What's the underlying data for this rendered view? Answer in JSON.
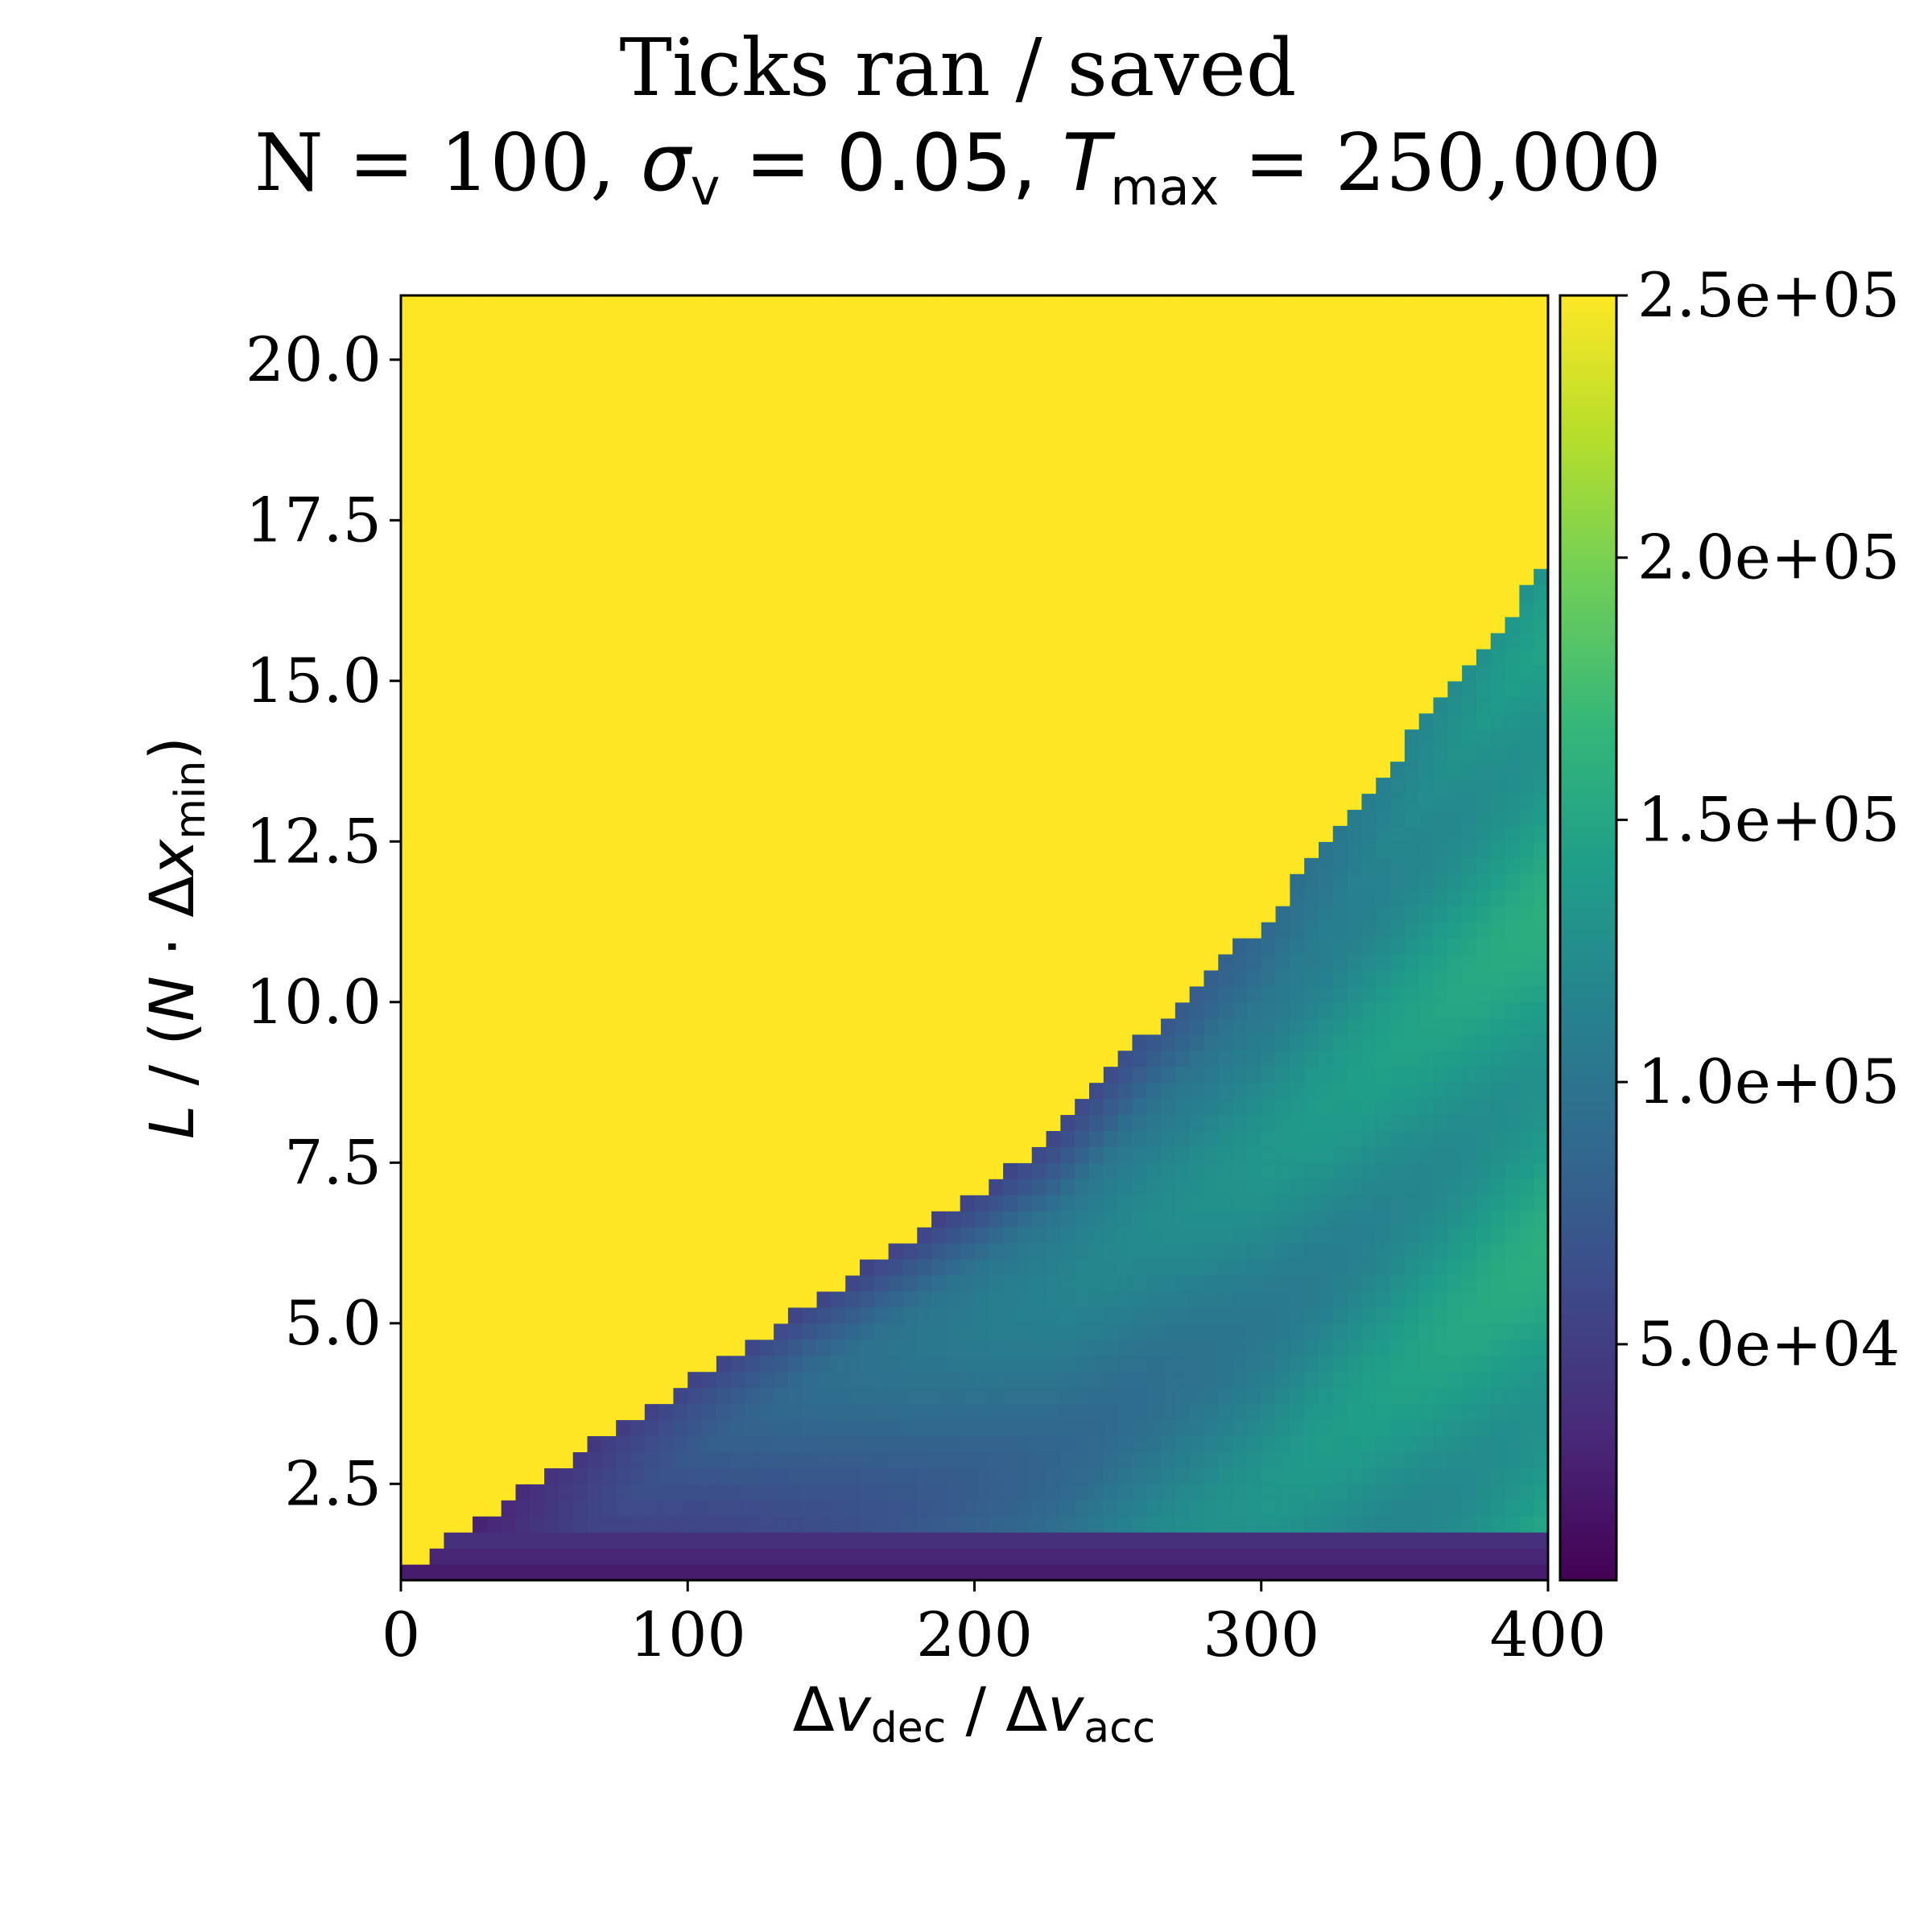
{
  "chart_data": {
    "type": "heatmap",
    "title": "Ticks ran / saved",
    "subtitle": {
      "prefix": "N = 100, ",
      "sigma_symbol": "σ",
      "sigma_sub": "v",
      "sigma_value": " = 0.05, ",
      "t_symbol": "T",
      "t_sub": "max",
      "t_value": " = 250,000"
    },
    "xlabel": {
      "delta1": "Δ",
      "v1": "v",
      "sub1": "dec",
      "middle": " / ",
      "delta2": "Δ",
      "v2": "v",
      "sub2": "acc"
    },
    "ylabel": {
      "l": "L",
      "middle": " / (",
      "n": "N",
      "dot": " · ",
      "delta": "Δ",
      "x": "x",
      "sub": "min",
      "close": ")"
    },
    "xlim": [
      0,
      400
    ],
    "ylim": [
      1.0,
      21.0
    ],
    "x_ticks": [
      0,
      100,
      200,
      300,
      400
    ],
    "y_ticks": [
      2.5,
      5.0,
      7.5,
      10.0,
      12.5,
      15.0,
      17.5,
      20.0
    ],
    "x_tick_labels": [
      "0",
      "100",
      "200",
      "300",
      "400"
    ],
    "y_tick_labels": [
      "2.5",
      "5.0",
      "7.5",
      "10.0",
      "12.5",
      "15.0",
      "17.5",
      "20.0"
    ],
    "colormap": "viridis",
    "colorbar": {
      "min": 5000,
      "max": 250000,
      "ticks": [
        50000,
        100000,
        150000,
        200000,
        250000
      ],
      "tick_labels": [
        "5.0e+04",
        "1.0e+05",
        "1.5e+05",
        "2.0e+05",
        "2.5e+05"
      ]
    },
    "saturated_value": 250000,
    "saturation_boundary": {
      "x": [
        0,
        50,
        100,
        150,
        200,
        230,
        260,
        300,
        350,
        400
      ],
      "y": [
        1.1,
        2.6,
        4.1,
        5.5,
        7.0,
        8.0,
        9.5,
        11.2,
        14.0,
        16.8
      ]
    },
    "bottom_row_value": 20000,
    "grid": false
  },
  "colors": {
    "viridis": [
      "#440154",
      "#482878",
      "#3e4989",
      "#31688e",
      "#26828e",
      "#1f9e89",
      "#35b779",
      "#6ece58",
      "#b5de2b",
      "#fde725"
    ],
    "saturated": "#fde725",
    "axis": "#000000"
  }
}
